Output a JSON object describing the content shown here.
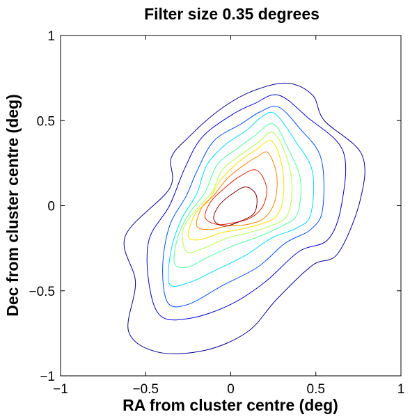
{
  "chart_data": {
    "type": "contour",
    "title": "Filter size 0.35 degrees",
    "xlabel": "RA from cluster centre (deg)",
    "ylabel": "Dec from cluster centre (deg)",
    "xlim": [
      -1,
      1
    ],
    "ylim": [
      -1,
      1
    ],
    "xticks": [
      -1,
      -0.5,
      0,
      0.5,
      1
    ],
    "yticks": [
      -1,
      -0.5,
      0,
      0.5,
      1
    ],
    "xtick_labels": [
      "−1",
      "−0.5",
      "0",
      "0.5",
      "1"
    ],
    "ytick_labels": [
      "−1",
      "−0.5",
      "0",
      "0.5",
      "1"
    ],
    "grid": false,
    "legend": "none",
    "colormap": "jet",
    "levels": [
      {
        "level": 1,
        "color": "#00008f",
        "contour": [
          [
            0.33,
            0.72
          ],
          [
            0.48,
            0.65
          ],
          [
            0.55,
            0.5
          ],
          [
            0.77,
            0.3
          ],
          [
            0.76,
            0.03
          ],
          [
            0.63,
            -0.28
          ],
          [
            0.48,
            -0.35
          ],
          [
            0.27,
            -0.55
          ],
          [
            0.1,
            -0.74
          ],
          [
            -0.15,
            -0.85
          ],
          [
            -0.43,
            -0.86
          ],
          [
            -0.6,
            -0.74
          ],
          [
            -0.56,
            -0.45
          ],
          [
            -0.62,
            -0.18
          ],
          [
            -0.36,
            0.1
          ],
          [
            -0.35,
            0.28
          ],
          [
            -0.25,
            0.4
          ],
          [
            -0.07,
            0.56
          ],
          [
            0.12,
            0.67
          ]
        ]
      },
      {
        "level": 2,
        "color": "#0000d0",
        "contour": [
          [
            0.28,
            0.65
          ],
          [
            0.45,
            0.52
          ],
          [
            0.66,
            0.32
          ],
          [
            0.65,
            0.0
          ],
          [
            0.57,
            -0.2
          ],
          [
            0.4,
            -0.27
          ],
          [
            0.2,
            -0.45
          ],
          [
            0.0,
            -0.58
          ],
          [
            -0.23,
            -0.66
          ],
          [
            -0.41,
            -0.65
          ],
          [
            -0.48,
            -0.46
          ],
          [
            -0.48,
            -0.2
          ],
          [
            -0.36,
            0.0
          ],
          [
            -0.27,
            0.22
          ],
          [
            -0.17,
            0.4
          ],
          [
            0.0,
            0.53
          ],
          [
            0.14,
            0.6
          ]
        ]
      },
      {
        "level": 3,
        "color": "#0050ff",
        "contour": [
          [
            0.28,
            0.58
          ],
          [
            0.4,
            0.46
          ],
          [
            0.53,
            0.28
          ],
          [
            0.54,
            -0.02
          ],
          [
            0.47,
            -0.14
          ],
          [
            0.32,
            -0.22
          ],
          [
            0.16,
            -0.36
          ],
          [
            -0.05,
            -0.47
          ],
          [
            -0.25,
            -0.58
          ],
          [
            -0.37,
            -0.57
          ],
          [
            -0.4,
            -0.36
          ],
          [
            -0.36,
            -0.12
          ],
          [
            -0.26,
            0.06
          ],
          [
            -0.2,
            0.2
          ],
          [
            -0.1,
            0.38
          ],
          [
            0.06,
            0.48
          ],
          [
            0.17,
            0.55
          ]
        ]
      },
      {
        "level": 4,
        "color": "#00d8ff",
        "contour": [
          [
            0.26,
            0.54
          ],
          [
            0.38,
            0.38
          ],
          [
            0.48,
            0.2
          ],
          [
            0.47,
            -0.05
          ],
          [
            0.39,
            -0.13
          ],
          [
            0.24,
            -0.19
          ],
          [
            0.09,
            -0.29
          ],
          [
            -0.09,
            -0.38
          ],
          [
            -0.24,
            -0.45
          ],
          [
            -0.36,
            -0.46
          ],
          [
            -0.35,
            -0.26
          ],
          [
            -0.29,
            -0.08
          ],
          [
            -0.2,
            0.07
          ],
          [
            -0.14,
            0.24
          ],
          [
            -0.03,
            0.36
          ],
          [
            0.09,
            0.44
          ],
          [
            0.18,
            0.52
          ]
        ]
      },
      {
        "level": 5,
        "color": "#50ff9f",
        "contour": [
          [
            0.25,
            0.48
          ],
          [
            0.34,
            0.33
          ],
          [
            0.41,
            0.15
          ],
          [
            0.39,
            -0.05
          ],
          [
            0.3,
            -0.12
          ],
          [
            0.17,
            -0.18
          ],
          [
            0.03,
            -0.23
          ],
          [
            -0.13,
            -0.3
          ],
          [
            -0.25,
            -0.36
          ],
          [
            -0.33,
            -0.34
          ],
          [
            -0.31,
            -0.18
          ],
          [
            -0.24,
            -0.04
          ],
          [
            -0.15,
            0.08
          ],
          [
            -0.08,
            0.24
          ],
          [
            0.03,
            0.33
          ],
          [
            0.14,
            0.41
          ]
        ]
      },
      {
        "level": 6,
        "color": "#afff50",
        "contour": [
          [
            0.25,
            0.43
          ],
          [
            0.33,
            0.28
          ],
          [
            0.36,
            0.1
          ],
          [
            0.33,
            -0.06
          ],
          [
            0.23,
            -0.12
          ],
          [
            0.1,
            -0.16
          ],
          [
            -0.02,
            -0.19
          ],
          [
            -0.16,
            -0.25
          ],
          [
            -0.26,
            -0.27
          ],
          [
            -0.28,
            -0.14
          ],
          [
            -0.2,
            -0.02
          ],
          [
            -0.11,
            0.08
          ],
          [
            -0.05,
            0.21
          ],
          [
            0.06,
            0.3
          ],
          [
            0.16,
            0.37
          ]
        ]
      },
      {
        "level": 7,
        "color": "#ffdf00",
        "contour": [
          [
            0.24,
            0.38
          ],
          [
            0.3,
            0.24
          ],
          [
            0.31,
            0.06
          ],
          [
            0.27,
            -0.06
          ],
          [
            0.17,
            -0.11
          ],
          [
            0.05,
            -0.14
          ],
          [
            -0.06,
            -0.16
          ],
          [
            -0.18,
            -0.2
          ],
          [
            -0.25,
            -0.18
          ],
          [
            -0.21,
            -0.05
          ],
          [
            -0.13,
            0.03
          ],
          [
            -0.06,
            0.15
          ],
          [
            0.05,
            0.26
          ],
          [
            0.15,
            0.33
          ]
        ]
      },
      {
        "level": 8,
        "color": "#ff8000",
        "contour": [
          [
            0.22,
            0.31
          ],
          [
            0.27,
            0.18
          ],
          [
            0.26,
            0.03
          ],
          [
            0.2,
            -0.07
          ],
          [
            0.1,
            -0.11
          ],
          [
            -0.02,
            -0.12
          ],
          [
            -0.12,
            -0.14
          ],
          [
            -0.2,
            -0.12
          ],
          [
            -0.17,
            -0.01
          ],
          [
            -0.1,
            0.06
          ],
          [
            -0.02,
            0.16
          ],
          [
            0.08,
            0.24
          ],
          [
            0.16,
            0.29
          ]
        ]
      },
      {
        "level": 9,
        "color": "#e02000",
        "contour": [
          [
            0.15,
            0.21
          ],
          [
            0.21,
            0.11
          ],
          [
            0.19,
            0.0
          ],
          [
            0.12,
            -0.07
          ],
          [
            0.02,
            -0.1
          ],
          [
            -0.08,
            -0.11
          ],
          [
            -0.15,
            -0.07
          ],
          [
            -0.12,
            0.02
          ],
          [
            -0.04,
            0.1
          ],
          [
            0.05,
            0.17
          ]
        ]
      },
      {
        "level": 10,
        "color": "#800000",
        "contour": [
          [
            0.09,
            0.11
          ],
          [
            0.15,
            0.06
          ],
          [
            0.14,
            -0.04
          ],
          [
            0.06,
            -0.09
          ],
          [
            -0.04,
            -0.12
          ],
          [
            -0.1,
            -0.08
          ],
          [
            -0.07,
            0.0
          ],
          [
            0.01,
            0.07
          ]
        ]
      }
    ]
  }
}
